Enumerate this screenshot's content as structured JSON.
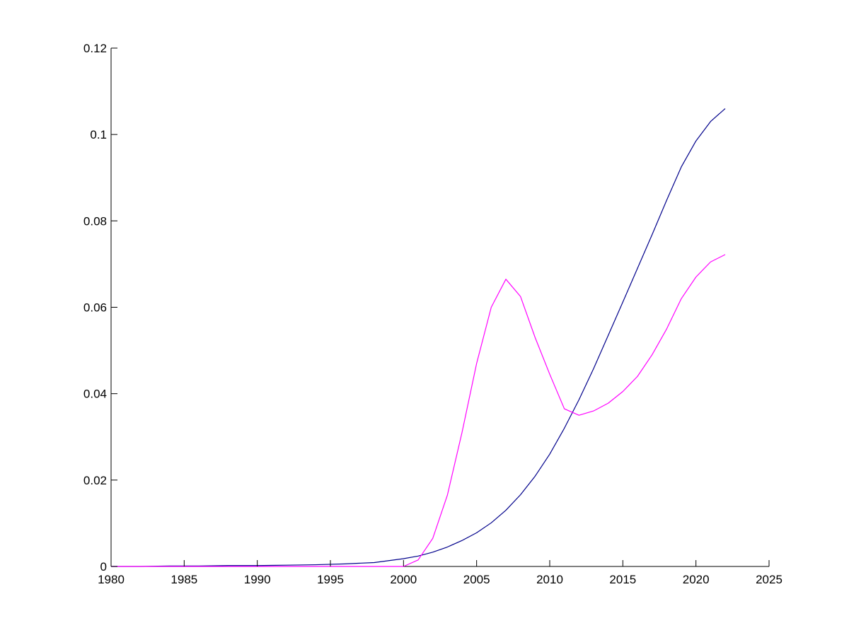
{
  "chart_data": {
    "type": "line",
    "title": "",
    "xlabel": "",
    "ylabel": "",
    "xlim": [
      1980,
      2025
    ],
    "ylim": [
      0,
      0.12
    ],
    "xticks": [
      1980,
      1985,
      1990,
      1995,
      2000,
      2005,
      2010,
      2015,
      2020,
      2025
    ],
    "xtick_labels": [
      "1980",
      "1985",
      "1990",
      "1995",
      "2000",
      "2005",
      "2010",
      "2015",
      "2020",
      "2025"
    ],
    "yticks": [
      0,
      0.02,
      0.04,
      0.06,
      0.08,
      0.1,
      0.12
    ],
    "ytick_labels": [
      "0",
      "0.02",
      "0.04",
      "0.06",
      "0.08",
      "0.1",
      "0.12"
    ],
    "grid": false,
    "legend": "none",
    "series": [
      {
        "color": "#00008b",
        "x": [
          1980,
          1982,
          1984,
          1986,
          1988,
          1990,
          1992,
          1994,
          1996,
          1998,
          2000,
          2001,
          2002,
          2003,
          2004,
          2005,
          2006,
          2007,
          2008,
          2009,
          2010,
          2011,
          2012,
          2013,
          2014,
          2015,
          2016,
          2017,
          2018,
          2019,
          2020,
          2021,
          2022
        ],
        "y": [
          0.0,
          0.0,
          0.0001,
          0.0001,
          0.0002,
          0.0002,
          0.0003,
          0.0004,
          0.0006,
          0.0009,
          0.0018,
          0.0024,
          0.0033,
          0.0045,
          0.006,
          0.0078,
          0.0101,
          0.013,
          0.0166,
          0.0209,
          0.026,
          0.032,
          0.0386,
          0.0458,
          0.0535,
          0.0612,
          0.069,
          0.0768,
          0.0848,
          0.0925,
          0.0985,
          0.103,
          0.106
        ]
      },
      {
        "color": "#ff00ff",
        "x": [
          1980,
          1999,
          2000,
          2001,
          2002,
          2003,
          2004,
          2005,
          2006,
          2007,
          2008,
          2009,
          2010,
          2011,
          2012,
          2013,
          2014,
          2015,
          2016,
          2017,
          2018,
          2019,
          2020,
          2021,
          2022
        ],
        "y": [
          0.0,
          0.0,
          0.0,
          0.0015,
          0.0065,
          0.0165,
          0.031,
          0.047,
          0.06,
          0.0665,
          0.0625,
          0.053,
          0.0445,
          0.0365,
          0.035,
          0.036,
          0.0378,
          0.0405,
          0.044,
          0.049,
          0.055,
          0.062,
          0.067,
          0.0705,
          0.0722
        ]
      }
    ]
  }
}
